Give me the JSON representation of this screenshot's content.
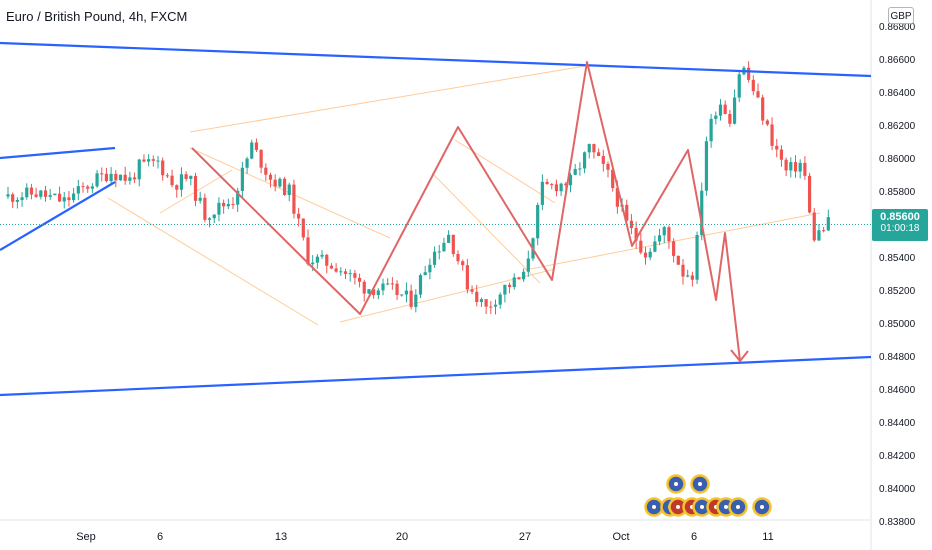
{
  "title": "Euro / British Pound, 4h, FXCM",
  "currency": "GBP",
  "last_price": "0.85600",
  "countdown": "01:00:18",
  "colors": {
    "up": "#26a69a",
    "down": "#ef5350",
    "trendline": "#2962ff",
    "zigzag": "#e06666",
    "channel": "#ffcc99",
    "price_line": "#26a69a"
  },
  "chart_data": {
    "type": "candlestick",
    "symbol": "EURGBP",
    "timeframe": "4h",
    "ylim": [
      0.8365,
      0.8695
    ],
    "yticks": [
      "0.86800",
      "0.86600",
      "0.86400",
      "0.86200",
      "0.86000",
      "0.85800",
      "0.85600",
      "0.85400",
      "0.85200",
      "0.85000",
      "0.84800",
      "0.84600",
      "0.84400",
      "0.84200",
      "0.84000",
      "0.83800"
    ],
    "xticks": [
      "Sep",
      "6",
      "13",
      "20",
      "27",
      "Oct",
      "6",
      "11"
    ],
    "last_price": 0.856,
    "price_path": [
      {
        "t": 0.0,
        "p": 0.8577
      },
      {
        "t": 1.5,
        "p": 0.8579
      },
      {
        "t": 3.0,
        "p": 0.8574
      },
      {
        "t": 4.8,
        "p": 0.8588
      },
      {
        "t": 5.5,
        "p": 0.8592
      },
      {
        "t": 6.5,
        "p": 0.8587
      },
      {
        "t": 7.0,
        "p": 0.8595
      },
      {
        "t": 8.0,
        "p": 0.8598
      },
      {
        "t": 8.8,
        "p": 0.8584
      },
      {
        "t": 9.6,
        "p": 0.8589
      },
      {
        "t": 10.5,
        "p": 0.8566
      },
      {
        "t": 12.0,
        "p": 0.8575
      },
      {
        "t": 13.0,
        "p": 0.8608
      },
      {
        "t": 14.0,
        "p": 0.8588
      },
      {
        "t": 15.0,
        "p": 0.858
      },
      {
        "t": 16.0,
        "p": 0.854
      },
      {
        "t": 17.5,
        "p": 0.8535
      },
      {
        "t": 19.0,
        "p": 0.8522
      },
      {
        "t": 20.5,
        "p": 0.852
      },
      {
        "t": 21.5,
        "p": 0.8514
      },
      {
        "t": 22.5,
        "p": 0.854
      },
      {
        "t": 23.5,
        "p": 0.8554
      },
      {
        "t": 24.5,
        "p": 0.8524
      },
      {
        "t": 25.5,
        "p": 0.8509
      },
      {
        "t": 26.5,
        "p": 0.8522
      },
      {
        "t": 27.5,
        "p": 0.8528
      },
      {
        "t": 28.5,
        "p": 0.8582
      },
      {
        "t": 30.0,
        "p": 0.8586
      },
      {
        "t": 31.0,
        "p": 0.8606
      },
      {
        "t": 32.0,
        "p": 0.859
      },
      {
        "t": 33.0,
        "p": 0.856
      },
      {
        "t": 34.0,
        "p": 0.8543
      },
      {
        "t": 35.0,
        "p": 0.8556
      },
      {
        "t": 36.0,
        "p": 0.8531
      },
      {
        "t": 36.6,
        "p": 0.853
      },
      {
        "t": 37.2,
        "p": 0.861
      },
      {
        "t": 37.9,
        "p": 0.8636
      },
      {
        "t": 38.5,
        "p": 0.8625
      },
      {
        "t": 39.1,
        "p": 0.8658
      },
      {
        "t": 39.8,
        "p": 0.864
      },
      {
        "t": 40.6,
        "p": 0.8615
      },
      {
        "t": 41.5,
        "p": 0.8592
      },
      {
        "t": 42.4,
        "p": 0.8598
      },
      {
        "t": 42.9,
        "p": 0.8552
      },
      {
        "t": 43.6,
        "p": 0.8558
      },
      {
        "t": 44.2,
        "p": 0.857
      }
    ]
  }
}
